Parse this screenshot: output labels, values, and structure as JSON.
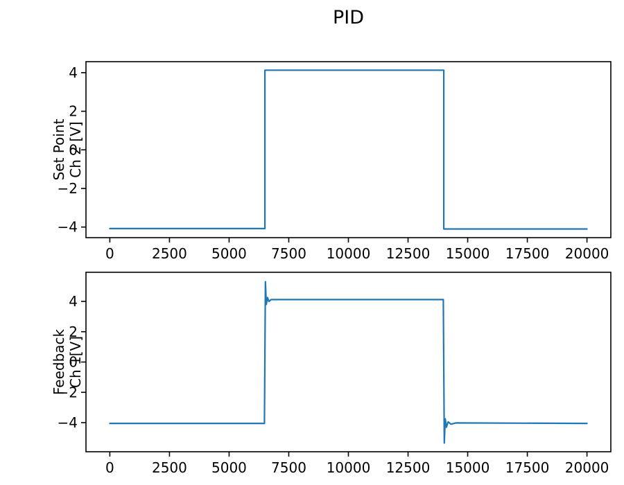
{
  "title": "PID",
  "chart_data": {
    "type": "line",
    "title": "PID",
    "line_color": "#1f77b4",
    "axes_color": "#000000",
    "grid": false,
    "subplots": [
      {
        "name": "set-point",
        "ylabel_lines": [
          "Set Point",
          "Ch 2 [V]"
        ],
        "xlabel": "",
        "xlim": [
          -1000,
          21000
        ],
        "ylim": [
          -4.55,
          4.57
        ],
        "xticks": [
          0,
          2500,
          5000,
          7500,
          10000,
          12500,
          15000,
          17500,
          20000
        ],
        "yticks": [
          -4,
          -2,
          0,
          2,
          4
        ],
        "series": [
          {
            "name": "Set Point Ch 2",
            "points": [
              [
                0,
                -4.08
              ],
              [
                6500,
                -4.08
              ],
              [
                6500,
                4.13
              ],
              [
                14000,
                4.13
              ],
              [
                14000,
                -4.1
              ],
              [
                20000,
                -4.1
              ]
            ]
          }
        ]
      },
      {
        "name": "feedback",
        "ylabel_lines": [
          "Feedback",
          "Ch 1[V]"
        ],
        "xlabel": "",
        "xlim": [
          -1000,
          21000
        ],
        "ylim": [
          -5.92,
          5.92
        ],
        "xticks": [
          0,
          2500,
          5000,
          7500,
          10000,
          12500,
          15000,
          17500,
          20000
        ],
        "yticks": [
          -4,
          -2,
          0,
          2,
          4
        ],
        "series": [
          {
            "name": "Feedback Ch 1",
            "points": [
              [
                0,
                -4.05
              ],
              [
                6480,
                -4.05
              ],
              [
                6520,
                5.3
              ],
              [
                6560,
                3.8
              ],
              [
                6610,
                4.25
              ],
              [
                6670,
                4.0
              ],
              [
                6760,
                4.12
              ],
              [
                13980,
                4.12
              ],
              [
                14020,
                -5.35
              ],
              [
                14060,
                -3.75
              ],
              [
                14110,
                -4.3
              ],
              [
                14180,
                -3.95
              ],
              [
                14300,
                -4.1
              ],
              [
                14500,
                -4.02
              ],
              [
                20000,
                -4.05
              ]
            ]
          }
        ]
      }
    ]
  }
}
